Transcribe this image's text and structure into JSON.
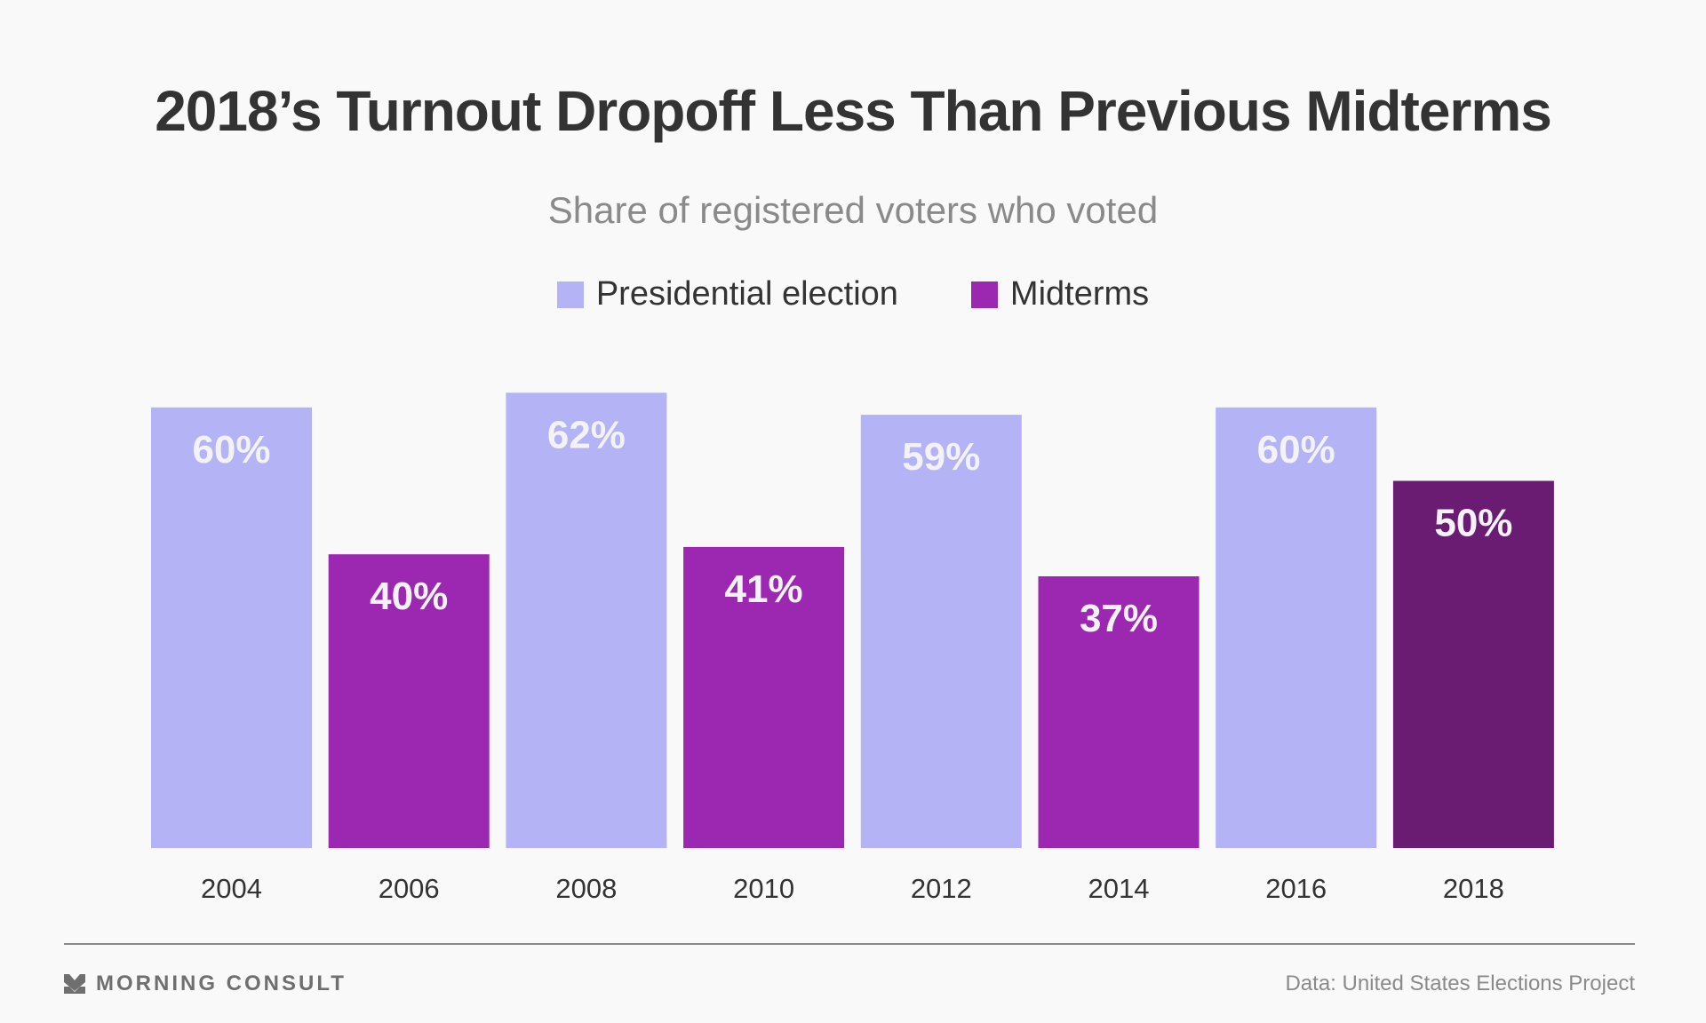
{
  "header": {
    "title": "2018’s Turnout Dropoff Less Than Previous Midterms",
    "subtitle": "Share of registered voters who voted"
  },
  "legend": [
    {
      "label": "Presidential election",
      "color": "#b3b3f5"
    },
    {
      "label": "Midterms",
      "color": "#9c27b0"
    }
  ],
  "footer": {
    "brand": "MORNING CONSULT",
    "source": "Data: United States Elections Project"
  },
  "chart_data": {
    "type": "bar",
    "title": "2018’s Turnout Dropoff Less Than Previous Midterms",
    "subtitle": "Share of registered voters who voted",
    "xlabel": "",
    "ylabel": "",
    "ylim": [
      0,
      62
    ],
    "grid": false,
    "legend_position": "top-center",
    "categories": [
      "2004",
      "2006",
      "2008",
      "2010",
      "2012",
      "2014",
      "2016",
      "2018"
    ],
    "values": [
      60,
      40,
      62,
      41,
      59,
      37,
      60,
      50
    ],
    "data_labels": [
      "60%",
      "40%",
      "62%",
      "41%",
      "59%",
      "37%",
      "60%",
      "50%"
    ],
    "series_type": [
      "Presidential election",
      "Midterms",
      "Presidential election",
      "Midterms",
      "Presidential election",
      "Midterms",
      "Presidential election",
      "Midterms"
    ],
    "colors": [
      "#b3b3f5",
      "#9c27b0",
      "#b3b3f5",
      "#9c27b0",
      "#b3b3f5",
      "#9c27b0",
      "#b3b3f5",
      "#6a1b72"
    ]
  }
}
